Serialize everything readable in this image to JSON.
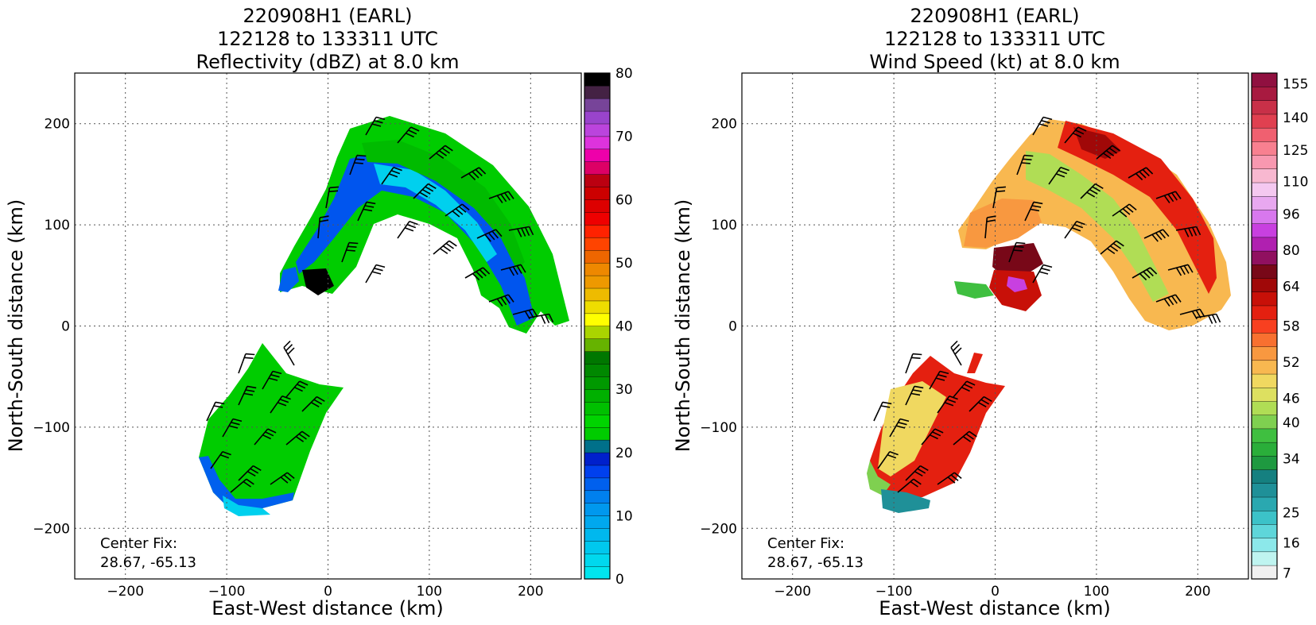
{
  "panels": [
    {
      "title_lines": [
        "220908H1 (EARL)",
        "122128 to 133311 UTC",
        "Reflectivity (dBZ) at 8.0 km"
      ],
      "xlabel": "East-West distance (km)",
      "ylabel": "North-South distance (km)",
      "center_fix_label": "Center Fix:",
      "center_fix_value": "28.67, -65.13",
      "xticks": [
        "−200",
        "−100",
        "0",
        "100",
        "200"
      ],
      "yticks": [
        "200",
        "100",
        "0",
        "−100",
        "−200"
      ],
      "colorbar_ticks": [
        "80",
        "70",
        "60",
        "50",
        "40",
        "30",
        "20",
        "10",
        "0"
      ]
    },
    {
      "title_lines": [
        "220908H1 (EARL)",
        "122128 to 133311 UTC",
        "Wind Speed (kt) at 8.0 km"
      ],
      "xlabel": "East-West distance (km)",
      "ylabel": "North-South distance (km)",
      "center_fix_label": "Center Fix:",
      "center_fix_value": "28.67, -65.13",
      "xticks": [
        "−200",
        "−100",
        "0",
        "100",
        "200"
      ],
      "yticks": [
        "200",
        "100",
        "0",
        "−100",
        "−200"
      ],
      "colorbar_ticks": [
        "155",
        "140",
        "125",
        "110",
        "96",
        "80",
        "64",
        "58",
        "52",
        "46",
        "40",
        "34",
        "25",
        "16",
        "7"
      ]
    }
  ],
  "chart_data": [
    {
      "type": "heatmap",
      "title": "220908H1 (EARL) 122128 to 133311 UTC Reflectivity (dBZ) at 8.0 km",
      "xlabel": "East-West distance (km)",
      "ylabel": "North-South distance (km)",
      "xlim": [
        -250,
        250
      ],
      "ylim": [
        -250,
        250
      ],
      "grid": true,
      "colorbar": {
        "min": 0,
        "max": 80,
        "ticks": [
          0,
          10,
          20,
          30,
          40,
          50,
          60,
          70,
          80
        ],
        "colors": [
          "#00e5ee",
          "#00d8ee",
          "#00c8ee",
          "#00b8ee",
          "#00a8ee",
          "#0098ee",
          "#0080ee",
          "#0060ee",
          "#0040ee",
          "#0020cc",
          "#00708a",
          "#00cc00",
          "#00d400",
          "#00c000",
          "#00b000",
          "#009900",
          "#008800",
          "#007700",
          "#66b300",
          "#aad400",
          "#ffff00",
          "#eedd00",
          "#eebb00",
          "#ee9900",
          "#ee8800",
          "#ee6600",
          "#ff4400",
          "#ff2200",
          "#ee0000",
          "#dd0000",
          "#cc0000",
          "#bb0011",
          "#dd0066",
          "#ee00aa",
          "#dd33dd",
          "#bb44dd",
          "#9944cc",
          "#774499",
          "#442244",
          "#000000"
        ]
      },
      "overlay": "wind barbs",
      "center_fix": [
        28.67,
        -65.13
      ]
    },
    {
      "type": "heatmap",
      "title": "220908H1 (EARL) 122128 to 133311 UTC Wind Speed (kt) at 8.0 km",
      "xlabel": "East-West distance (km)",
      "ylabel": "North-South distance (km)",
      "xlim": [
        -250,
        250
      ],
      "ylim": [
        -250,
        250
      ],
      "grid": true,
      "colorbar": {
        "ticks": [
          7,
          16,
          25,
          34,
          40,
          46,
          52,
          58,
          64,
          80,
          96,
          110,
          125,
          140,
          155
        ],
        "colors": [
          "#f0f0f0",
          "#bff4f0",
          "#8ce8ea",
          "#5ed6da",
          "#3cc2c8",
          "#2aa8b0",
          "#1f9098",
          "#158080",
          "#1e9940",
          "#2aae3a",
          "#3fbf40",
          "#7fd050",
          "#b0dd55",
          "#dde060",
          "#f0d860",
          "#f8b850",
          "#f89840",
          "#f87030",
          "#f84020",
          "#e42010",
          "#c81008",
          "#a00808",
          "#780818",
          "#901060",
          "#b020b0",
          "#c840e0",
          "#d878ee",
          "#e8a8f0",
          "#f4c8f0",
          "#f8b8d0",
          "#f898b0",
          "#f88090",
          "#f06070",
          "#e04050",
          "#c83048",
          "#a81a40",
          "#901040"
        ]
      },
      "overlay": "wind barbs",
      "center_fix": [
        28.67,
        -65.13
      ]
    }
  ]
}
